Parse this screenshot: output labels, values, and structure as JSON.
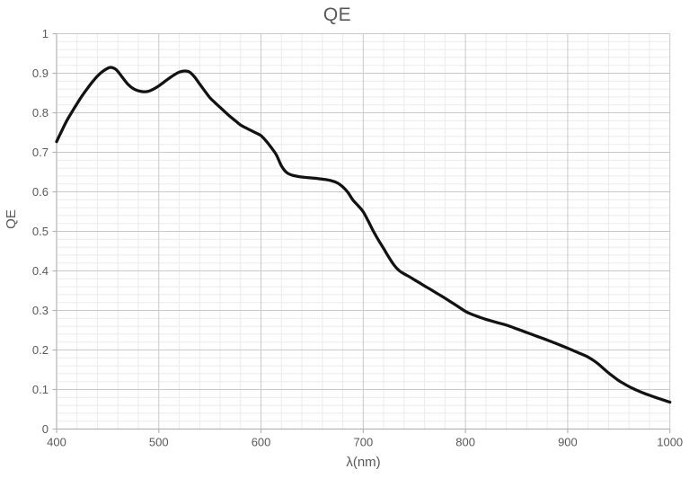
{
  "chart_data": {
    "type": "line",
    "title": "QE",
    "xlabel": "λ(nm)",
    "ylabel": "QE",
    "x_range": [
      400,
      1000
    ],
    "y_range": [
      0,
      1
    ],
    "x_major": 100,
    "x_minor": 20,
    "y_major": 0.1,
    "y_minor": 0.02,
    "grid": "major+minor",
    "legend": "none",
    "x_ticks": [
      {
        "value": 400,
        "label": "400"
      },
      {
        "value": 500,
        "label": "500"
      },
      {
        "value": 600,
        "label": "600"
      },
      {
        "value": 700,
        "label": "700"
      },
      {
        "value": 800,
        "label": "800"
      },
      {
        "value": 900,
        "label": "900"
      },
      {
        "value": 1000,
        "label": "1000"
      }
    ],
    "y_ticks": [
      {
        "value": 0,
        "label": "0"
      },
      {
        "value": 0.1,
        "label": "0.1"
      },
      {
        "value": 0.2,
        "label": "0.2"
      },
      {
        "value": 0.3,
        "label": "0.3"
      },
      {
        "value": 0.4,
        "label": "0.4"
      },
      {
        "value": 0.5,
        "label": "0.5"
      },
      {
        "value": 0.6,
        "label": "0.6"
      },
      {
        "value": 0.7,
        "label": "0.7"
      },
      {
        "value": 0.8,
        "label": "0.8"
      },
      {
        "value": 0.9,
        "label": "0.9"
      },
      {
        "value": 1,
        "label": "1"
      }
    ],
    "colors": {
      "line": "#121212",
      "major_grid": "#c9c9c9",
      "minor_grid": "#ebebeb",
      "axis": "#b5b5b5",
      "text": "#595959",
      "background": "#ffffff"
    },
    "series": [
      {
        "name": "QE",
        "points": [
          [
            400,
            0.727
          ],
          [
            405,
            0.754
          ],
          [
            410,
            0.78
          ],
          [
            415,
            0.802
          ],
          [
            420,
            0.823
          ],
          [
            425,
            0.843
          ],
          [
            430,
            0.861
          ],
          [
            435,
            0.878
          ],
          [
            440,
            0.893
          ],
          [
            445,
            0.9045
          ],
          [
            450,
            0.9125
          ],
          [
            453,
            0.9148
          ],
          [
            457,
            0.9115
          ],
          [
            460,
            0.9045
          ],
          [
            465,
            0.8875
          ],
          [
            470,
            0.8715
          ],
          [
            475,
            0.861
          ],
          [
            480,
            0.8555
          ],
          [
            485,
            0.8532
          ],
          [
            490,
            0.8545
          ],
          [
            495,
            0.86
          ],
          [
            500,
            0.868
          ],
          [
            505,
            0.8775
          ],
          [
            510,
            0.887
          ],
          [
            515,
            0.8958
          ],
          [
            520,
            0.9028
          ],
          [
            525,
            0.9058
          ],
          [
            530,
            0.9032
          ],
          [
            535,
            0.8905
          ],
          [
            540,
            0.8725
          ],
          [
            545,
            0.855
          ],
          [
            550,
            0.838
          ],
          [
            555,
            0.8255
          ],
          [
            560,
            0.8135
          ],
          [
            565,
            0.8015
          ],
          [
            570,
            0.79
          ],
          [
            575,
            0.7795
          ],
          [
            580,
            0.769
          ],
          [
            585,
            0.762
          ],
          [
            590,
            0.7555
          ],
          [
            595,
            0.749
          ],
          [
            600,
            0.742
          ],
          [
            605,
            0.7285
          ],
          [
            610,
            0.712
          ],
          [
            615,
            0.6935
          ],
          [
            620,
            0.6655
          ],
          [
            625,
            0.649
          ],
          [
            630,
            0.6425
          ],
          [
            635,
            0.6395
          ],
          [
            640,
            0.6375
          ],
          [
            645,
            0.6362
          ],
          [
            650,
            0.635
          ],
          [
            655,
            0.6338
          ],
          [
            660,
            0.632
          ],
          [
            665,
            0.6302
          ],
          [
            670,
            0.6272
          ],
          [
            675,
            0.6222
          ],
          [
            680,
            0.6125
          ],
          [
            685,
            0.5985
          ],
          [
            690,
            0.579
          ],
          [
            695,
            0.565
          ],
          [
            700,
            0.5495
          ],
          [
            705,
            0.5255
          ],
          [
            710,
            0.5
          ],
          [
            715,
            0.4775
          ],
          [
            720,
            0.4565
          ],
          [
            725,
            0.4348
          ],
          [
            730,
            0.4152
          ],
          [
            735,
            0.401
          ],
          [
            740,
            0.3925
          ],
          [
            745,
            0.3855
          ],
          [
            750,
            0.3775
          ],
          [
            755,
            0.37
          ],
          [
            760,
            0.362
          ],
          [
            765,
            0.3545
          ],
          [
            770,
            0.3465
          ],
          [
            775,
            0.339
          ],
          [
            780,
            0.331
          ],
          [
            785,
            0.3228
          ],
          [
            790,
            0.3145
          ],
          [
            795,
            0.306
          ],
          [
            800,
            0.2975
          ],
          [
            805,
            0.2915
          ],
          [
            810,
            0.2865
          ],
          [
            815,
            0.2818
          ],
          [
            820,
            0.2775
          ],
          [
            825,
            0.2738
          ],
          [
            830,
            0.27
          ],
          [
            835,
            0.2665
          ],
          [
            840,
            0.263
          ],
          [
            845,
            0.2585
          ],
          [
            850,
            0.2535
          ],
          [
            855,
            0.249
          ],
          [
            860,
            0.244
          ],
          [
            865,
            0.2395
          ],
          [
            870,
            0.2345
          ],
          [
            875,
            0.23
          ],
          [
            880,
            0.225
          ],
          [
            885,
            0.2202
          ],
          [
            890,
            0.215
          ],
          [
            895,
            0.2098
          ],
          [
            900,
            0.2045
          ],
          [
            905,
            0.199
          ],
          [
            910,
            0.1935
          ],
          [
            915,
            0.188
          ],
          [
            920,
            0.182
          ],
          [
            925,
            0.174
          ],
          [
            930,
            0.1645
          ],
          [
            935,
            0.1532
          ],
          [
            940,
            0.142
          ],
          [
            945,
            0.132
          ],
          [
            950,
            0.1225
          ],
          [
            955,
            0.1148
          ],
          [
            960,
            0.1075
          ],
          [
            965,
            0.1012
          ],
          [
            970,
            0.0955
          ],
          [
            975,
            0.0902
          ],
          [
            980,
            0.0855
          ],
          [
            985,
            0.0808
          ],
          [
            990,
            0.0765
          ],
          [
            995,
            0.0722
          ],
          [
            1000,
            0.068
          ]
        ]
      }
    ]
  }
}
